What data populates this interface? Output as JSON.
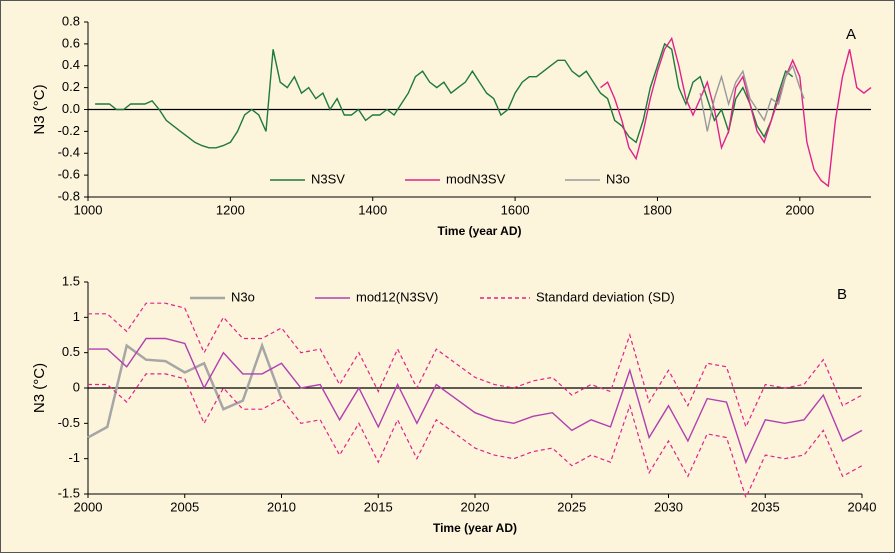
{
  "chart_data": [
    {
      "type": "line",
      "label": "A",
      "xlabel": "Time (year AD)",
      "ylabel": "N3 (°C)",
      "xlim": [
        1000,
        2100
      ],
      "ylim": [
        -0.8,
        0.8
      ],
      "xticks": [
        1000,
        1200,
        1400,
        1600,
        1800,
        2000
      ],
      "yticks": [
        -0.8,
        -0.6,
        -0.4,
        -0.2,
        {
          "value": 0,
          "label": "0.0"
        },
        0.2,
        0.4,
        0.6,
        0.8
      ],
      "legend": "lower center",
      "series": [
        {
          "name": "N3SV",
          "color": "#1e7a3c",
          "x": [
            1010,
            1020,
            1030,
            1040,
            1050,
            1060,
            1070,
            1080,
            1090,
            1100,
            1110,
            1120,
            1130,
            1140,
            1150,
            1160,
            1170,
            1180,
            1190,
            1200,
            1210,
            1220,
            1230,
            1240,
            1250,
            1260,
            1270,
            1280,
            1290,
            1300,
            1310,
            1320,
            1330,
            1340,
            1350,
            1360,
            1370,
            1380,
            1390,
            1400,
            1410,
            1420,
            1430,
            1440,
            1450,
            1460,
            1470,
            1480,
            1490,
            1500,
            1510,
            1520,
            1530,
            1540,
            1550,
            1560,
            1570,
            1580,
            1590,
            1600,
            1610,
            1620,
            1630,
            1640,
            1650,
            1660,
            1670,
            1680,
            1690,
            1700,
            1710,
            1720,
            1730,
            1740,
            1750,
            1760,
            1770,
            1780,
            1790,
            1800,
            1810,
            1820,
            1830,
            1840,
            1850,
            1860,
            1870,
            1880,
            1890,
            1900,
            1910,
            1920,
            1930,
            1940,
            1950,
            1960,
            1970,
            1980,
            1990
          ],
          "values": [
            0.05,
            0.05,
            0.05,
            0,
            0,
            0.05,
            0.05,
            0.05,
            0.08,
            0,
            -0.1,
            -0.15,
            -0.2,
            -0.25,
            -0.3,
            -0.33,
            -0.35,
            -0.35,
            -0.33,
            -0.3,
            -0.2,
            -0.05,
            0,
            -0.05,
            -0.2,
            0.55,
            0.25,
            0.2,
            0.3,
            0.15,
            0.2,
            0.1,
            0.15,
            0,
            0.1,
            -0.05,
            -0.05,
            0,
            -0.1,
            -0.05,
            -0.05,
            0,
            -0.05,
            0.05,
            0.15,
            0.3,
            0.35,
            0.25,
            0.2,
            0.25,
            0.15,
            0.2,
            0.25,
            0.35,
            0.25,
            0.15,
            0.1,
            -0.05,
            0,
            0.15,
            0.25,
            0.3,
            0.3,
            0.35,
            0.4,
            0.45,
            0.45,
            0.35,
            0.3,
            0.35,
            0.25,
            0.15,
            0.1,
            -0.1,
            -0.15,
            -0.25,
            -0.3,
            -0.1,
            0.2,
            0.4,
            0.6,
            0.55,
            0.2,
            0.05,
            0.25,
            0.3,
            0.1,
            -0.1,
            0,
            -0.2,
            0.1,
            0.2,
            0.05,
            -0.15,
            -0.25,
            -0.1,
            0.15,
            0.35,
            0.3
          ]
        },
        {
          "name": "modN3SV",
          "color": "#e0238a",
          "x": [
            1720,
            1730,
            1740,
            1750,
            1760,
            1770,
            1780,
            1790,
            1800,
            1810,
            1820,
            1830,
            1840,
            1850,
            1860,
            1870,
            1880,
            1890,
            1900,
            1910,
            1920,
            1930,
            1940,
            1950,
            1960,
            1970,
            1980,
            1990,
            2000,
            2010,
            2020,
            2030,
            2040,
            2050,
            2060,
            2070,
            2080,
            2090,
            2100
          ],
          "values": [
            0.2,
            0.25,
            0.1,
            -0.1,
            -0.35,
            -0.45,
            -0.2,
            0.1,
            0.35,
            0.55,
            0.65,
            0.4,
            0.1,
            -0.05,
            0.1,
            0.25,
            0,
            -0.35,
            -0.2,
            0.2,
            0.3,
            0.05,
            -0.2,
            -0.3,
            -0.1,
            0.1,
            0.3,
            0.45,
            0.3,
            -0.3,
            -0.55,
            -0.65,
            -0.7,
            -0.1,
            0.3,
            0.55,
            0.2,
            0.15,
            0.2
          ]
        },
        {
          "name": "N3o",
          "color": "#999999",
          "x": [
            1860,
            1870,
            1880,
            1890,
            1900,
            1910,
            1920,
            1930,
            1940,
            1950,
            1960,
            1970,
            1980,
            1990,
            2000,
            2006
          ],
          "values": [
            0.15,
            -0.2,
            0.1,
            0.3,
            0.05,
            0.25,
            0.35,
            0.1,
            0,
            -0.1,
            0.1,
            0.05,
            0.3,
            0.4,
            0.2,
            0.1
          ]
        }
      ]
    },
    {
      "type": "line",
      "label": "B",
      "xlabel": "Time (year AD)",
      "ylabel": "N3 (°C)",
      "xlim": [
        2000,
        2040
      ],
      "ylim": [
        -1.5,
        1.5
      ],
      "xticks": [
        2000,
        2005,
        2010,
        2015,
        2020,
        2025,
        2030,
        2035,
        2040
      ],
      "yticks": [
        -1.5,
        -1,
        -0.5,
        0,
        0.5,
        1,
        1.5
      ],
      "legend": "upper center",
      "x": [
        2000,
        2001,
        2002,
        2003,
        2004,
        2005,
        2006,
        2007,
        2008,
        2009,
        2010,
        2011,
        2012,
        2013,
        2014,
        2015,
        2016,
        2017,
        2018,
        2019,
        2020,
        2021,
        2022,
        2023,
        2024,
        2025,
        2026,
        2027,
        2028,
        2029,
        2030,
        2031,
        2032,
        2033,
        2034,
        2035,
        2036,
        2037,
        2038,
        2039,
        2040
      ],
      "series": [
        {
          "name": "N3o",
          "color": "#a6a6a6",
          "values": [
            -0.7,
            -0.55,
            0.6,
            0.4,
            0.38,
            0.22,
            0.35,
            -0.3,
            -0.18,
            0.6,
            -0.15,
            null,
            null,
            null,
            null,
            null,
            null,
            null,
            null,
            null,
            null,
            null,
            null,
            null,
            null,
            null,
            null,
            null,
            null,
            null,
            null,
            null,
            null,
            null,
            null,
            null,
            null,
            null,
            null,
            null,
            null
          ]
        },
        {
          "name": "mod12(N3SV)",
          "color": "#b040b0",
          "values": [
            0.55,
            0.55,
            0.3,
            0.7,
            0.7,
            0.63,
            0,
            0.5,
            0.2,
            0.2,
            0.35,
            0,
            0.05,
            -0.45,
            0,
            -0.55,
            0.05,
            -0.5,
            0.05,
            -0.15,
            -0.35,
            -0.45,
            -0.5,
            -0.4,
            -0.35,
            -0.6,
            -0.45,
            -0.55,
            0.25,
            -0.7,
            -0.25,
            -0.75,
            -0.15,
            -0.2,
            -1.05,
            -0.45,
            -0.5,
            -0.45,
            -0.1,
            -0.75,
            -0.6
          ]
        },
        {
          "name": "Standard deviation (SD)",
          "color": "#e0238a",
          "dashed": true,
          "upper": [
            1.05,
            1.05,
            0.8,
            1.2,
            1.2,
            1.13,
            0.5,
            1,
            0.7,
            0.7,
            0.85,
            0.5,
            0.55,
            0.05,
            0.5,
            -0.05,
            0.55,
            0,
            0.55,
            0.35,
            0.15,
            0.05,
            0,
            0.1,
            0.15,
            -0.1,
            0.05,
            -0.05,
            0.75,
            -0.2,
            0.25,
            -0.25,
            0.35,
            0.3,
            -0.55,
            0.05,
            0,
            0.05,
            0.4,
            -0.25,
            -0.1
          ],
          "lower": [
            0.05,
            0.05,
            -0.2,
            0.2,
            0.2,
            0.13,
            -0.5,
            0,
            -0.3,
            -0.3,
            -0.15,
            -0.5,
            -0.45,
            -0.95,
            -0.5,
            -1.05,
            -0.45,
            -1,
            -0.45,
            -0.65,
            -0.85,
            -0.95,
            -1,
            -0.9,
            -0.85,
            -1.1,
            -0.95,
            -1.05,
            -0.25,
            -1.2,
            -0.75,
            -1.25,
            -0.65,
            -0.7,
            -1.55,
            -0.95,
            -1,
            -0.95,
            -0.6,
            -1.25,
            -1.1
          ]
        }
      ]
    }
  ]
}
